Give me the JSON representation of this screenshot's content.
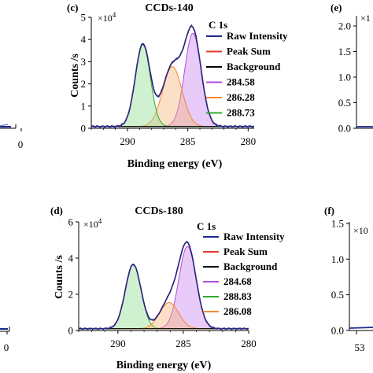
{
  "chart_data": [
    {
      "panel": "(c)",
      "type": "line",
      "title": "CCDs-140",
      "subtitle": "C 1s",
      "xlabel": "Binding energy (eV)",
      "ylabel": "Counts /s",
      "y_multiplier": "×10",
      "y_multiplier_exp": "4",
      "xlim": [
        293,
        279.5
      ],
      "ylim": [
        0,
        5
      ],
      "xticks": [
        290,
        285,
        280
      ],
      "yticks": [
        0,
        1,
        2,
        3,
        4,
        5
      ],
      "background": 0.08,
      "peaks": [
        {
          "name": "284.58",
          "color": "#b54bd6",
          "center": 284.58,
          "height": 4.2,
          "sigma": 0.68,
          "fill": "rgba(200,130,240,0.42)"
        },
        {
          "name": "286.28",
          "color": "#ef8a33",
          "center": 286.28,
          "height": 2.7,
          "sigma": 0.8,
          "fill": "rgba(246,178,120,0.42)"
        },
        {
          "name": "288.73",
          "color": "#2fa82f",
          "center": 288.73,
          "height": 3.7,
          "sigma": 0.62,
          "fill": "rgba(150,225,150,0.45)"
        }
      ],
      "series": [
        {
          "name": "Raw Intensity",
          "color": "#1a2a8c"
        },
        {
          "name": "Peak Sum",
          "color": "#e23b2a"
        },
        {
          "name": "Background",
          "color": "#000000"
        },
        {
          "name": "284.58",
          "color": "#b54bd6"
        },
        {
          "name": "286.28",
          "color": "#ef8a33"
        },
        {
          "name": "288.73",
          "color": "#2fa82f"
        }
      ]
    },
    {
      "panel": "(d)",
      "type": "line",
      "title": "CCDs-180",
      "subtitle": "C 1s",
      "xlabel": "Binding energy (eV)",
      "ylabel": "Counts /s",
      "y_multiplier": "×10",
      "y_multiplier_exp": "4",
      "xlim": [
        293,
        280
      ],
      "ylim": [
        0,
        6
      ],
      "xticks": [
        290,
        285,
        280
      ],
      "yticks": [
        0,
        2,
        4,
        6
      ],
      "background": 0.1,
      "peaks": [
        {
          "name": "284.68",
          "color": "#b54bd6",
          "center": 284.68,
          "height": 4.55,
          "sigma": 0.66,
          "fill": "rgba(200,130,240,0.42)"
        },
        {
          "name": "288.83",
          "color": "#2fa82f",
          "center": 288.83,
          "height": 3.55,
          "sigma": 0.6,
          "fill": "rgba(150,225,150,0.45)"
        },
        {
          "name": "286.08",
          "color": "#ef8a33",
          "center": 286.08,
          "height": 1.45,
          "sigma": 0.72,
          "fill": "rgba(246,178,120,0.42)"
        }
      ],
      "series": [
        {
          "name": "Raw Intensity",
          "color": "#1a2a8c"
        },
        {
          "name": "Peak Sum",
          "color": "#e23b2a"
        },
        {
          "name": "Background",
          "color": "#000000"
        },
        {
          "name": "284.68",
          "color": "#b54bd6"
        },
        {
          "name": "288.83",
          "color": "#2fa82f"
        },
        {
          "name": "286.08",
          "color": "#ef8a33"
        }
      ]
    }
  ],
  "edge_fragments": {
    "left_top_tick": "0",
    "left_bottom_tick": "0",
    "right_top_panel": "(e)",
    "right_top_mult": "×1",
    "right_top_yticks": [
      "2.0",
      "1.5",
      "1.0",
      "0.5",
      "0.0"
    ],
    "right_bottom_panel": "(f)",
    "right_bottom_mult": "×10",
    "right_bottom_yticks": [
      "1.5",
      "1.0",
      "0.5",
      "0.0"
    ],
    "right_bottom_xtick": "53"
  }
}
